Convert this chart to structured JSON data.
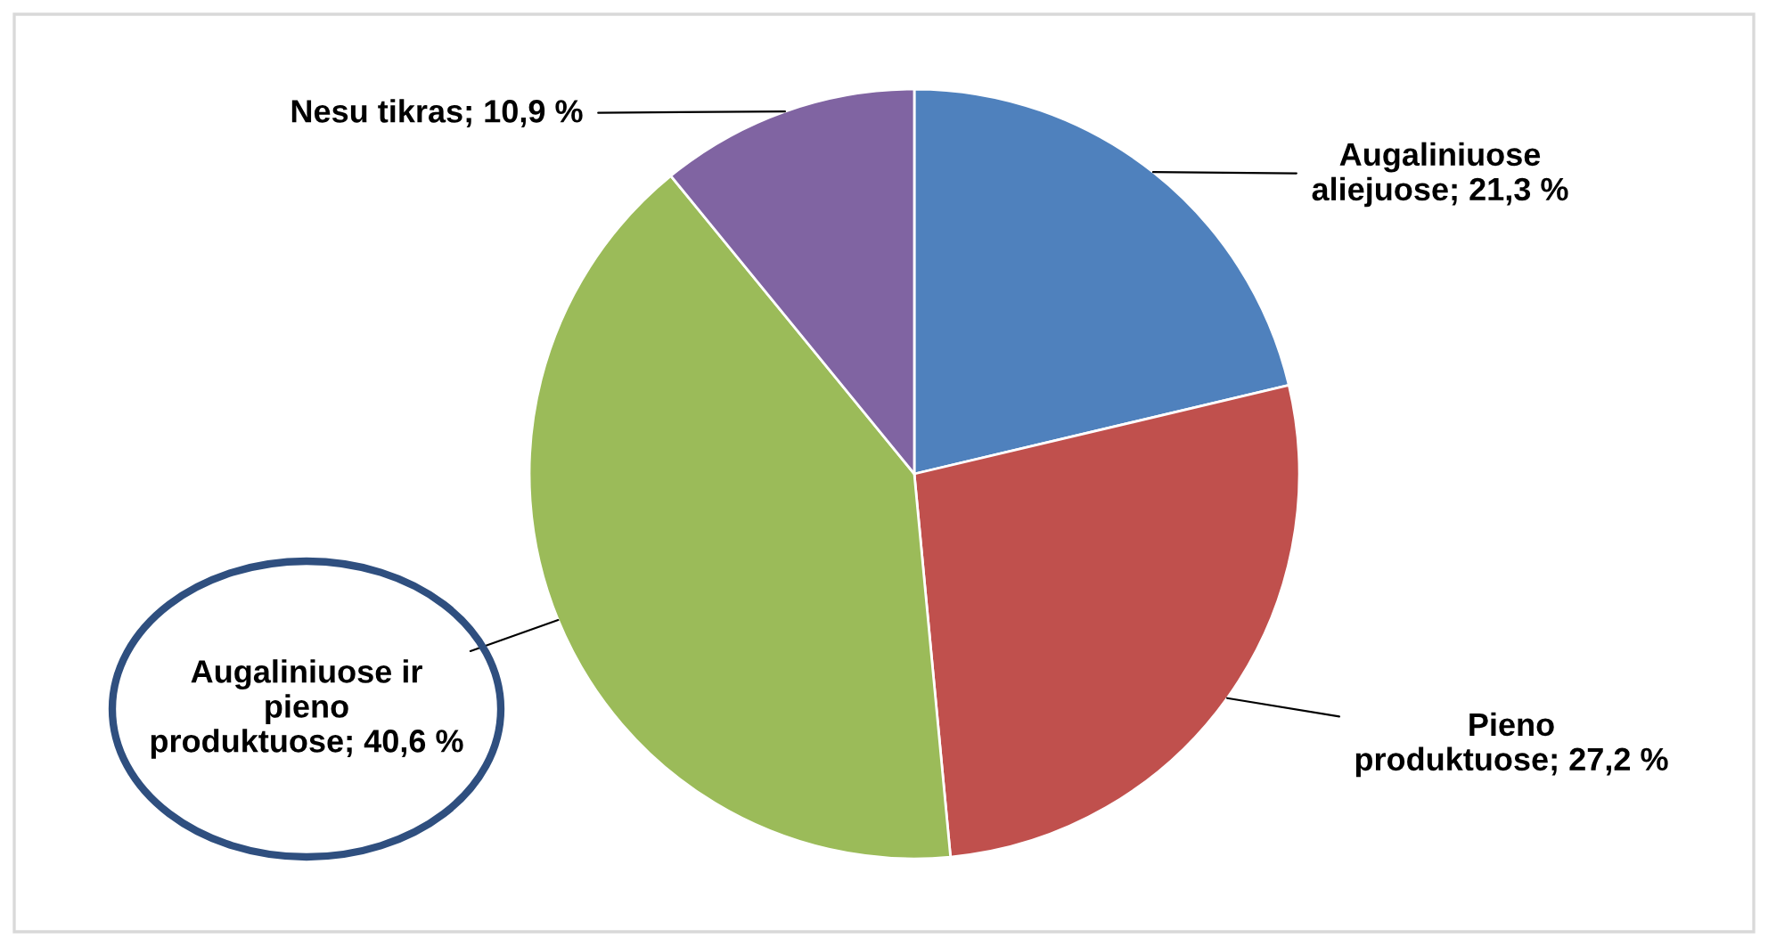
{
  "chart_data": {
    "type": "pie",
    "categories": [
      "Augaliniuose aliejuose",
      "Pieno produktuose",
      "Augaliniuose ir pieno produktuose",
      "Nesu tikras"
    ],
    "values": [
      21.3,
      27.2,
      40.6,
      10.9
    ],
    "value_labels": [
      "21,3 %",
      "27,2 %",
      "40,6 %",
      "10,9 %"
    ],
    "colors": [
      "#4f81bd",
      "#c0504d",
      "#9bbb59",
      "#8064a2"
    ],
    "legend": false
  }
}
